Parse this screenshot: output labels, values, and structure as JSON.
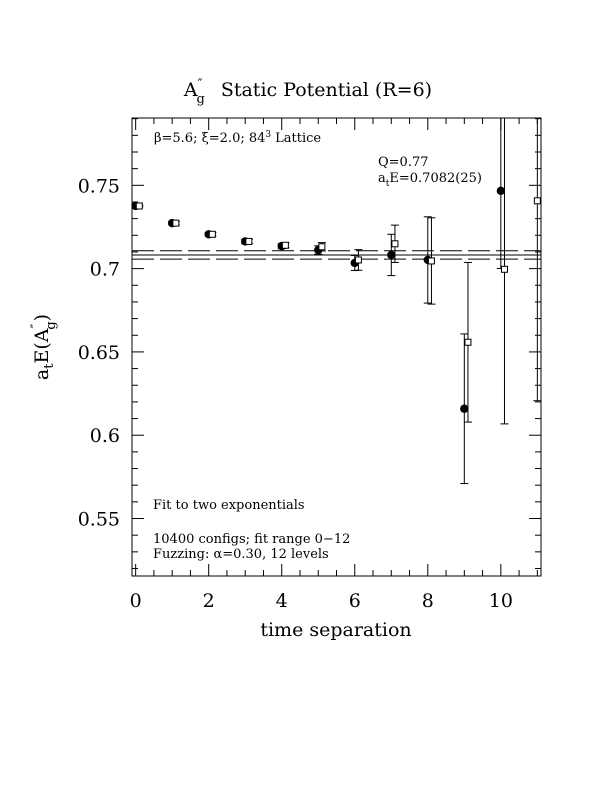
{
  "chart_data": {
    "type": "scatter",
    "title": {
      "main": "A",
      "super": "″",
      "sub": "g",
      "rest": "Static Potential (R=6)"
    },
    "xlabel": "time separation",
    "ylabel": {
      "pre": "a",
      "pre_sub": "t",
      "mid": "E(A",
      "sup": "″",
      "sub": "g",
      "post": ")"
    },
    "xlim": [
      -0.1,
      11.1
    ],
    "ylim": [
      0.5155,
      0.7904
    ],
    "x_ticks": [
      0,
      2,
      4,
      6,
      8,
      10
    ],
    "x_tick_labels": [
      "0",
      "2",
      "4",
      "6",
      "8",
      "10"
    ],
    "y_ticks": [
      0.55,
      0.6,
      0.65,
      0.7,
      0.75
    ],
    "y_tick_labels": [
      "0.55",
      "0.6",
      "0.65",
      "0.7",
      "0.75"
    ],
    "grid": false,
    "series": [
      {
        "marker": "filled-circle",
        "points": [
          {
            "x": 0,
            "y": 0.7376,
            "err": 0.0005
          },
          {
            "x": 1,
            "y": 0.7273,
            "err": 0.001
          },
          {
            "x": 2,
            "y": 0.7206,
            "err": 0.001
          },
          {
            "x": 3,
            "y": 0.7163,
            "err": 0.0012
          },
          {
            "x": 4,
            "y": 0.7135,
            "err": 0.0015
          },
          {
            "x": 5,
            "y": 0.7112,
            "err": 0.0025
          },
          {
            "x": 6,
            "y": 0.7034,
            "err": 0.0045
          },
          {
            "x": 7,
            "y": 0.7082,
            "err": 0.0124
          },
          {
            "x": 8,
            "y": 0.7052,
            "err": 0.0259
          },
          {
            "x": 9,
            "y": 0.6159,
            "err": 0.0449
          },
          {
            "x": 10,
            "y": 0.7467,
            "err": 0.0466
          }
        ]
      },
      {
        "marker": "open-square",
        "points": [
          {
            "x": 0.1,
            "y": 0.7376,
            "err": 0.0005
          },
          {
            "x": 1.1,
            "y": 0.7273,
            "err": 0.001
          },
          {
            "x": 2.1,
            "y": 0.7206,
            "err": 0.001
          },
          {
            "x": 3.1,
            "y": 0.7163,
            "err": 0.0012
          },
          {
            "x": 4.1,
            "y": 0.714,
            "err": 0.0015
          },
          {
            "x": 5.1,
            "y": 0.7131,
            "err": 0.0025
          },
          {
            "x": 6.1,
            "y": 0.7052,
            "err": 0.0062
          },
          {
            "x": 7.1,
            "y": 0.7149,
            "err": 0.0112
          },
          {
            "x": 8.1,
            "y": 0.7046,
            "err": 0.0259
          },
          {
            "x": 9.1,
            "y": 0.6558,
            "err": 0.0479
          },
          {
            "x": 10.1,
            "y": 0.6996,
            "err": 0.0928
          },
          {
            "x": 11.0,
            "y": 0.7407,
            "err": 0.12
          }
        ]
      }
    ],
    "fit": {
      "value": 0.7082,
      "band": [
        0.7057,
        0.7107
      ],
      "x_range": [
        -0.1,
        11.1
      ]
    },
    "annotations": {
      "lattice": {
        "beta": "β=5.6;",
        "xi": "ξ=2.0;",
        "size": "84",
        "size_exp": "3",
        "lattice": "Lattice"
      },
      "q": "Q=0.77",
      "energy": {
        "pre": "a",
        "sub": "t",
        "rest": "E=0.7082(25)"
      },
      "fit_desc": "Fit to two exponentials",
      "configs": "10400 configs; fit range 0−12",
      "fuzzing": "Fuzzing: α=0.30, 12 levels"
    }
  }
}
